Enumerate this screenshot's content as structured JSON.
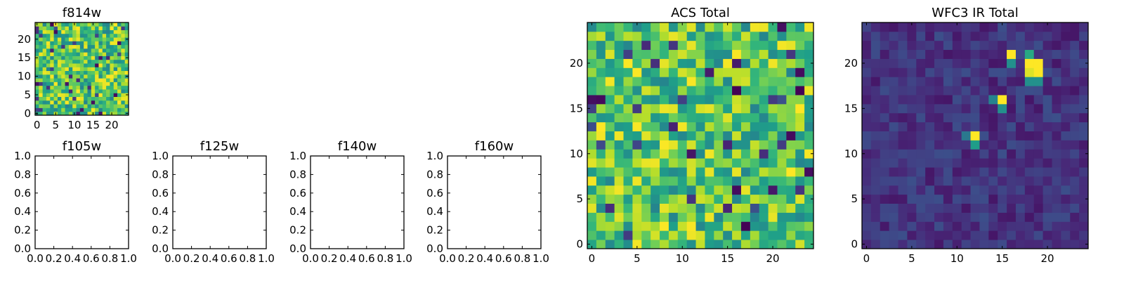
{
  "chart_data": [
    {
      "type": "heatmap",
      "title": "f814w",
      "colormap": "viridis",
      "grid": "off",
      "grid_size": [
        25,
        25
      ],
      "xlim": [
        -0.5,
        24.5
      ],
      "ylim": [
        -0.5,
        24.5
      ],
      "xticks": [
        0,
        5,
        10,
        15,
        20
      ],
      "yticks": [
        0,
        5,
        10,
        15,
        20
      ],
      "tick_labels_x": [
        "0",
        "5",
        "10",
        "15",
        "20"
      ],
      "tick_labels_y": [
        "0",
        "5",
        "10",
        "15",
        "20"
      ],
      "vmin": 0,
      "vmax": 1,
      "pattern": "noise",
      "seed": 11
    },
    {
      "type": "heatmap",
      "title": "f105w",
      "empty": true,
      "xlim": [
        0.0,
        1.0
      ],
      "ylim": [
        0.0,
        1.0
      ],
      "tick_labels_x": [
        "0.0",
        "0.2",
        "0.4",
        "0.6",
        "0.8",
        "1.0"
      ],
      "tick_labels_y": [
        "0.0",
        "0.2",
        "0.4",
        "0.6",
        "0.8",
        "1.0"
      ]
    },
    {
      "type": "heatmap",
      "title": "f125w",
      "empty": true,
      "xlim": [
        0.0,
        1.0
      ],
      "ylim": [
        0.0,
        1.0
      ],
      "tick_labels_x": [
        "0.0",
        "0.2",
        "0.4",
        "0.6",
        "0.8",
        "1.0"
      ],
      "tick_labels_y": [
        "0.0",
        "0.2",
        "0.4",
        "0.6",
        "0.8",
        "1.0"
      ]
    },
    {
      "type": "heatmap",
      "title": "f140w",
      "empty": true,
      "xlim": [
        0.0,
        1.0
      ],
      "ylim": [
        0.0,
        1.0
      ],
      "tick_labels_x": [
        "0.0",
        "0.2",
        "0.4",
        "0.6",
        "0.8",
        "1.0"
      ],
      "tick_labels_y": [
        "0.0",
        "0.2",
        "0.4",
        "0.6",
        "0.8",
        "1.0"
      ]
    },
    {
      "type": "heatmap",
      "title": "f160w",
      "empty": true,
      "xlim": [
        0.0,
        1.0
      ],
      "ylim": [
        0.0,
        1.0
      ],
      "tick_labels_x": [
        "0.0",
        "0.2",
        "0.4",
        "0.6",
        "0.8",
        "1.0"
      ],
      "tick_labels_y": [
        "0.0",
        "0.2",
        "0.4",
        "0.6",
        "0.8",
        "1.0"
      ]
    },
    {
      "type": "heatmap",
      "title": "ACS Total",
      "colormap": "viridis",
      "grid": "off",
      "grid_size": [
        25,
        25
      ],
      "xlim": [
        -0.5,
        24.5
      ],
      "ylim": [
        -0.5,
        24.5
      ],
      "xticks": [
        0,
        5,
        10,
        15,
        20
      ],
      "yticks": [
        0,
        5,
        10,
        15,
        20
      ],
      "tick_labels_x": [
        "0",
        "5",
        "10",
        "15",
        "20"
      ],
      "tick_labels_y": [
        "0",
        "5",
        "10",
        "15",
        "20"
      ],
      "vmin": 0,
      "vmax": 1,
      "pattern": "noise",
      "seed": 7
    },
    {
      "type": "heatmap",
      "title": "WFC3 IR Total",
      "colormap": "viridis",
      "grid": "off",
      "grid_size": [
        25,
        25
      ],
      "xlim": [
        -0.5,
        24.5
      ],
      "ylim": [
        -0.5,
        24.5
      ],
      "xticks": [
        0,
        5,
        10,
        15,
        20
      ],
      "yticks": [
        0,
        5,
        10,
        15,
        20
      ],
      "tick_labels_x": [
        "0",
        "5",
        "10",
        "15",
        "20"
      ],
      "tick_labels_y": [
        "0",
        "5",
        "10",
        "15",
        "20"
      ],
      "vmin": 0,
      "vmax": 1,
      "pattern": "dark-with-sources",
      "seed": 3,
      "bright_pixels": [
        {
          "x": 18,
          "y": 20,
          "value": 1.0
        },
        {
          "x": 19,
          "y": 20,
          "value": 1.0
        },
        {
          "x": 18,
          "y": 19,
          "value": 0.95
        },
        {
          "x": 19,
          "y": 19,
          "value": 1.0
        },
        {
          "x": 18,
          "y": 18,
          "value": 0.5
        },
        {
          "x": 19,
          "y": 18,
          "value": 0.5
        },
        {
          "x": 18,
          "y": 21,
          "value": 0.6
        },
        {
          "x": 16,
          "y": 21,
          "value": 1.0
        },
        {
          "x": 16,
          "y": 20,
          "value": 0.5
        },
        {
          "x": 15,
          "y": 16,
          "value": 1.0
        },
        {
          "x": 15,
          "y": 15,
          "value": 0.5
        },
        {
          "x": 14,
          "y": 16,
          "value": 0.45
        },
        {
          "x": 12,
          "y": 12,
          "value": 1.0
        },
        {
          "x": 12,
          "y": 11,
          "value": 0.55
        },
        {
          "x": 11,
          "y": 12,
          "value": 0.4
        }
      ]
    }
  ]
}
